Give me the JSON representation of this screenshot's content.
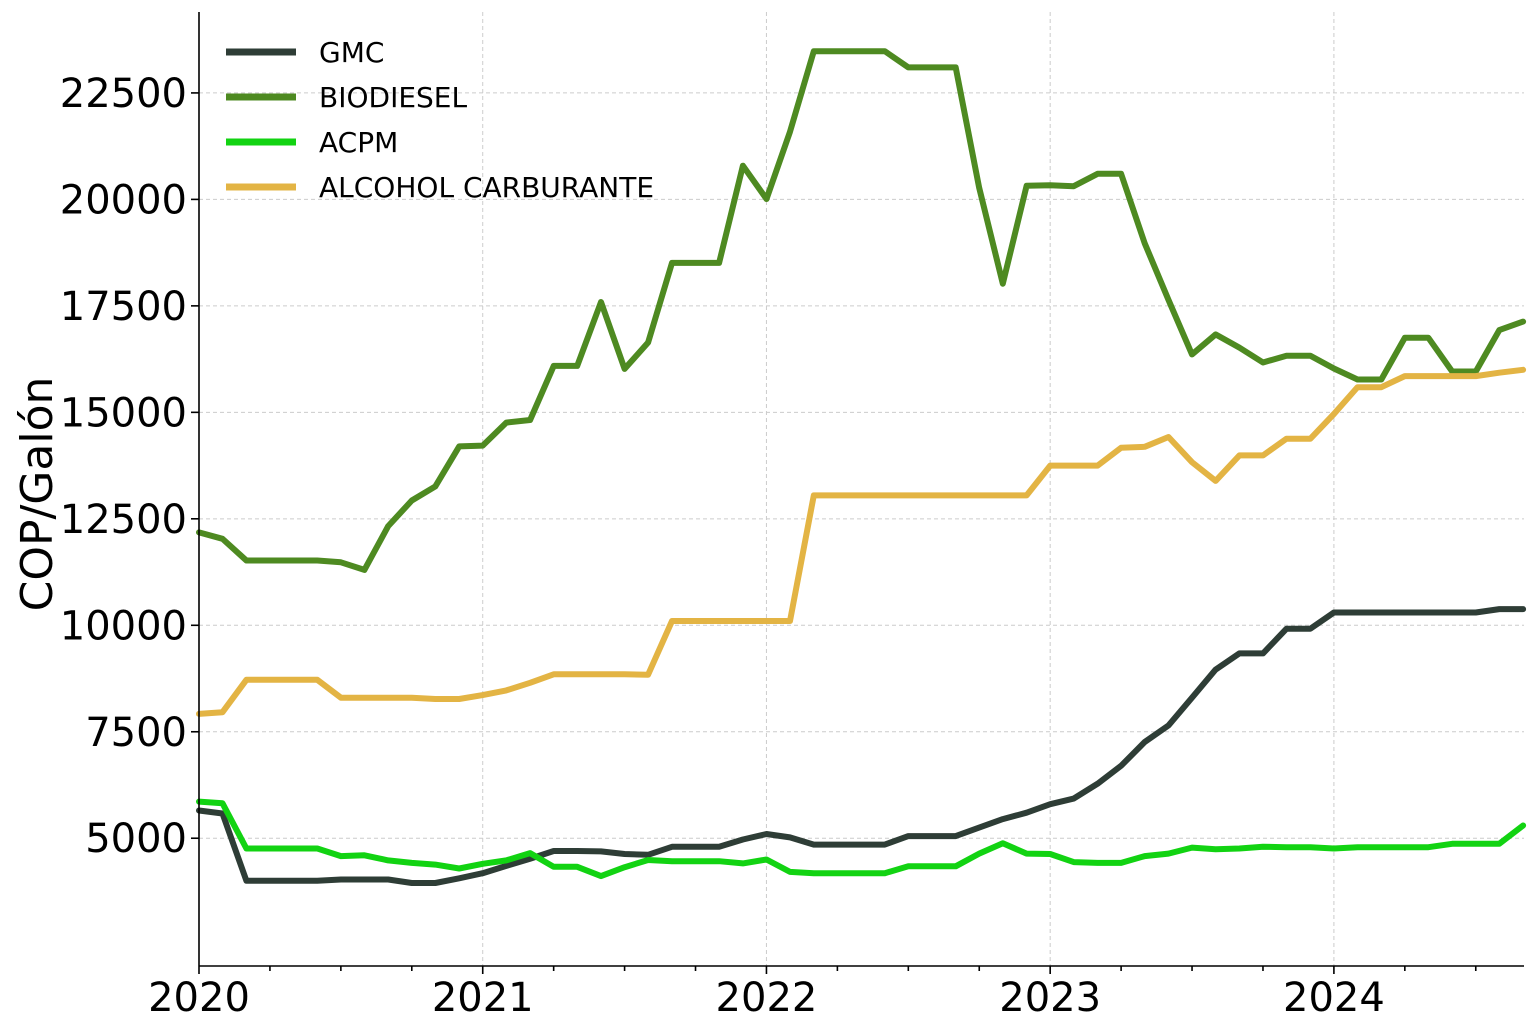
{
  "chart_data": {
    "type": "line",
    "title": "",
    "xlabel": "",
    "ylabel": "COP/Galón",
    "xlim": [
      2020.0,
      2024.67
    ],
    "ylim": [
      2000,
      24400
    ],
    "x_ticks": [
      2020,
      2021,
      2022,
      2023,
      2024
    ],
    "x_tick_labels": [
      "2020",
      "2021",
      "2022",
      "2023",
      "2024"
    ],
    "y_ticks": [
      5000,
      7500,
      10000,
      12500,
      15000,
      17500,
      20000,
      22500
    ],
    "y_tick_labels": [
      "5000",
      "7500",
      "10000",
      "12500",
      "15000",
      "17500",
      "20000",
      "22500"
    ],
    "grid": true,
    "legend_position": "top-left",
    "x": [
      2020.0,
      2020.083,
      2020.167,
      2020.25,
      2020.333,
      2020.417,
      2020.5,
      2020.583,
      2020.667,
      2020.75,
      2020.833,
      2020.917,
      2021.0,
      2021.083,
      2021.167,
      2021.25,
      2021.333,
      2021.417,
      2021.5,
      2021.583,
      2021.667,
      2021.75,
      2021.833,
      2021.917,
      2022.0,
      2022.083,
      2022.167,
      2022.25,
      2022.333,
      2022.417,
      2022.5,
      2022.583,
      2022.667,
      2022.75,
      2022.833,
      2022.917,
      2023.0,
      2023.083,
      2023.167,
      2023.25,
      2023.333,
      2023.417,
      2023.5,
      2023.583,
      2023.667,
      2023.75,
      2023.833,
      2023.917,
      2024.0,
      2024.083,
      2024.167,
      2024.25,
      2024.333,
      2024.417,
      2024.5,
      2024.583,
      2024.667
    ],
    "series": [
      {
        "name": "GMC",
        "color": "#2e3d36",
        "values": [
          5650,
          5580,
          4000,
          4000,
          4000,
          4000,
          4030,
          4030,
          4030,
          3950,
          3950,
          4060,
          4180,
          4350,
          4520,
          4700,
          4700,
          4690,
          4630,
          4610,
          4800,
          4800,
          4800,
          4970,
          5100,
          5020,
          4850,
          4850,
          4850,
          4850,
          5050,
          5050,
          5050,
          5250,
          5450,
          5600,
          5800,
          5930,
          6280,
          6700,
          7260,
          7650,
          8300,
          8960,
          9340,
          9340,
          9920,
          9920,
          10300,
          10300,
          10300,
          10300,
          10300,
          10300,
          10300,
          10380,
          10380
        ]
      },
      {
        "name": "BIODIESEL",
        "color": "#4e8a21",
        "values": [
          12180,
          12030,
          11520,
          11520,
          11520,
          11520,
          11480,
          11300,
          12330,
          12930,
          13260,
          14200,
          14220,
          14760,
          14820,
          16090,
          16090,
          17590,
          16020,
          16640,
          18510,
          18510,
          18510,
          20790,
          20010,
          21590,
          23480,
          23480,
          23480,
          23480,
          23100,
          23100,
          23100,
          20270,
          18020,
          20320,
          20330,
          20310,
          20600,
          20600,
          18970,
          17640,
          16360,
          16830,
          16520,
          16170,
          16330,
          16330,
          16030,
          15770,
          15770,
          16750,
          16750,
          15960,
          15960,
          16930,
          17130
        ]
      },
      {
        "name": "ACPM",
        "color": "#12d312",
        "values": [
          5860,
          5820,
          4760,
          4760,
          4760,
          4760,
          4580,
          4600,
          4480,
          4420,
          4380,
          4290,
          4400,
          4480,
          4650,
          4330,
          4330,
          4110,
          4320,
          4490,
          4460,
          4460,
          4460,
          4410,
          4500,
          4210,
          4180,
          4180,
          4180,
          4180,
          4340,
          4340,
          4340,
          4640,
          4880,
          4640,
          4630,
          4440,
          4420,
          4420,
          4580,
          4640,
          4780,
          4740,
          4760,
          4800,
          4790,
          4790,
          4760,
          4790,
          4790,
          4790,
          4790,
          4870,
          4870,
          4870,
          5300
        ]
      },
      {
        "name": "ALCOHOL CARBURANTE",
        "color": "#e3b444",
        "values": [
          7920,
          7960,
          8720,
          8720,
          8720,
          8720,
          8300,
          8300,
          8300,
          8300,
          8270,
          8270,
          8360,
          8470,
          8650,
          8850,
          8850,
          8850,
          8850,
          8840,
          10100,
          10100,
          10100,
          10100,
          10100,
          10100,
          13050,
          13050,
          13050,
          13050,
          13050,
          13050,
          13050,
          13050,
          13050,
          13050,
          13750,
          13750,
          13750,
          14170,
          14190,
          14420,
          13830,
          13390,
          13990,
          13990,
          14380,
          14380,
          14960,
          15590,
          15590,
          15850,
          15850,
          15850,
          15850,
          15930,
          16000
        ]
      }
    ]
  }
}
